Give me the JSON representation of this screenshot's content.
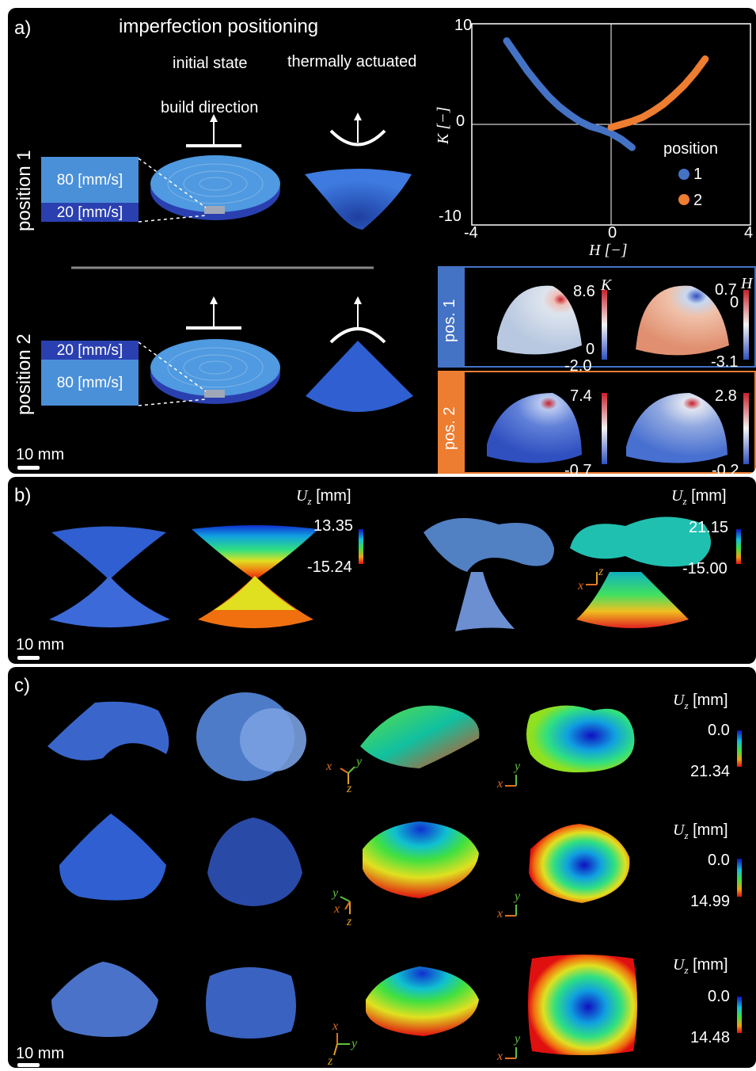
{
  "panel_a": {
    "label": "a)",
    "title": "imperfection positioning",
    "col_initial": "initial state",
    "col_actuated": "thermally actuated",
    "build_direction": "build direction",
    "row1_label": "position 1",
    "row2_label": "position 2",
    "row1_speeds": [
      "80 [mm/s]",
      "20 [mm/s]"
    ],
    "row2_speeds": [
      "20 [mm/s]",
      "80 [mm/s]"
    ],
    "scale_bar": "10 mm",
    "colors": {
      "light_layer": "#4a90d9",
      "dark_layer": "#2a40b0",
      "disc": "#4f9ae0",
      "shell": "#2f5fd0"
    }
  },
  "chart_data": {
    "type": "scatter",
    "xlabel": "H [−]",
    "ylabel": "K [−]",
    "xlim": [
      -4,
      4
    ],
    "ylim": [
      -10,
      10
    ],
    "x_ticks": [
      "-4",
      "0",
      "4"
    ],
    "y_ticks": [
      "10",
      "0",
      "-10"
    ],
    "legend_title": "position",
    "legend_position": "lower-right",
    "series": [
      {
        "name": "1",
        "color": "#4472c4",
        "x": [
          -3.0,
          -2.7,
          -2.4,
          -2.1,
          -1.8,
          -1.5,
          -1.2,
          -0.9,
          -0.6,
          -0.3,
          0.0,
          0.3,
          0.6
        ],
        "y": [
          8.3,
          6.8,
          5.3,
          4.0,
          2.8,
          1.8,
          1.0,
          0.3,
          -0.2,
          -0.5,
          -0.9,
          -1.5,
          -2.3
        ]
      },
      {
        "name": "2",
        "color": "#ed7d31",
        "x": [
          0.0,
          0.3,
          0.6,
          0.9,
          1.2,
          1.5,
          1.8,
          2.1,
          2.4,
          2.7
        ],
        "y": [
          -0.3,
          0.0,
          0.3,
          0.7,
          1.3,
          2.0,
          2.9,
          3.9,
          5.1,
          6.5
        ]
      }
    ]
  },
  "heatmaps": {
    "pos1_label": "pos. 1",
    "pos2_label": "pos. 2",
    "K_symbol": "K",
    "H_symbol": "H",
    "pos1_K": {
      "max": "8.6",
      "zero": "0",
      "min": "-2.0"
    },
    "pos1_H": {
      "max": "0.7",
      "zero": "0",
      "min": "-3.1"
    },
    "pos2_K": {
      "max": "7.4",
      "min": "-0.7"
    },
    "pos2_H": {
      "max": "2.8",
      "min": "-0.2"
    },
    "pos1_color": "#4472c4",
    "pos2_color": "#ed7d31"
  },
  "panel_b": {
    "label": "b)",
    "uz_label": "U",
    "uz_sub": "z",
    "uz_unit": "[mm]",
    "left_max": "13.35",
    "left_min": "-15.24",
    "right_max": "21.15",
    "right_min": "-15.00",
    "axis_x": "x",
    "axis_z": "z",
    "scale_bar": "10 mm"
  },
  "panel_c": {
    "label": "c)",
    "uz_label": "U",
    "uz_sub": "z",
    "uz_unit": "[mm]",
    "rows": [
      {
        "top": "0.0",
        "bottom": "21.34"
      },
      {
        "top": "0.0",
        "bottom": "14.99"
      },
      {
        "top": "0.0",
        "bottom": "14.48"
      }
    ],
    "axis_x": "x",
    "axis_y": "y",
    "axis_z": "z",
    "scale_bar": "10 mm"
  }
}
